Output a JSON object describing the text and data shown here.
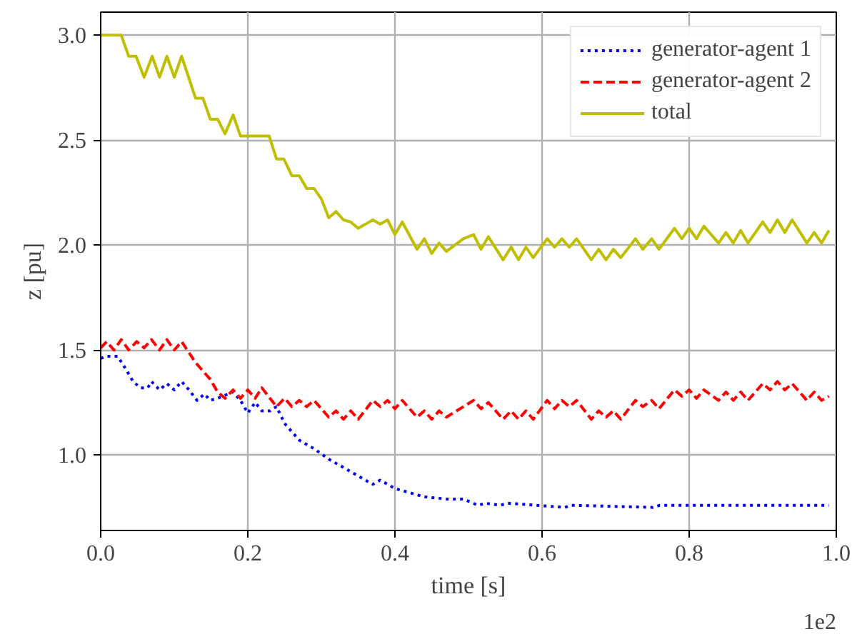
{
  "chart_data": {
    "type": "line",
    "xlabel": "time [s]",
    "ylabel": "z [pu]",
    "annotations": [
      "1e2"
    ],
    "xlim": [
      0.0,
      1.0
    ],
    "xticks": [
      {
        "value": 0,
        "label": "0.0"
      },
      0.2,
      0.4,
      0.6,
      0.8,
      {
        "value": 1,
        "label": "1.0"
      }
    ],
    "ylim": [
      0.64,
      3.11
    ],
    "yticks": [
      {
        "value": 1,
        "label": "1.0"
      },
      1.5,
      {
        "value": 2,
        "label": "2.0"
      },
      2.5,
      {
        "value": 3,
        "label": "3.0"
      }
    ],
    "grid": true,
    "legend": "top right",
    "marker": "none",
    "series": [
      {
        "name": "generator-agent 1",
        "color": "#0000ff",
        "line_style": "dotted",
        "x": [
          0,
          0.008,
          0.023,
          0.034,
          0.044,
          0.054,
          0.064,
          0.069,
          0.08,
          0.09,
          0.1,
          0.11,
          0.12,
          0.131,
          0.141,
          0.149,
          0.159,
          0.18,
          0.19,
          0.2,
          0.21,
          0.219,
          0.23,
          0.239,
          0.25,
          0.27,
          0.29,
          0.31,
          0.33,
          0.35,
          0.37,
          0.38,
          0.4,
          0.42,
          0.44,
          0.47,
          0.493,
          0.513,
          0.523,
          0.543,
          0.553,
          0.631,
          0.64,
          0.751,
          0.76,
          0.99
        ],
        "values": [
          1.46,
          1.47,
          1.47,
          1.41,
          1.35,
          1.32,
          1.32,
          1.35,
          1.31,
          1.34,
          1.31,
          1.35,
          1.31,
          1.26,
          1.29,
          1.26,
          1.27,
          1.3,
          1.26,
          1.2,
          1.25,
          1.21,
          1.21,
          1.23,
          1.15,
          1.07,
          1.03,
          0.98,
          0.94,
          0.9,
          0.86,
          0.88,
          0.84,
          0.82,
          0.8,
          0.79,
          0.79,
          0.76,
          0.77,
          0.76,
          0.77,
          0.75,
          0.76,
          0.75,
          0.76,
          0.76
        ]
      },
      {
        "name": "generator-agent 2",
        "color": "#ff0000",
        "line_style": "dashed",
        "x": [
          0,
          0.008,
          0.018,
          0.028,
          0.038,
          0.049,
          0.059,
          0.069,
          0.08,
          0.09,
          0.1,
          0.11,
          0.129,
          0.149,
          0.159,
          0.169,
          0.18,
          0.19,
          0.2,
          0.21,
          0.219,
          0.239,
          0.25,
          0.26,
          0.27,
          0.28,
          0.29,
          0.31,
          0.32,
          0.33,
          0.34,
          0.35,
          0.37,
          0.38,
          0.39,
          0.4,
          0.41,
          0.43,
          0.44,
          0.45,
          0.46,
          0.47,
          0.493,
          0.507,
          0.517,
          0.527,
          0.547,
          0.558,
          0.568,
          0.578,
          0.588,
          0.607,
          0.617,
          0.627,
          0.637,
          0.647,
          0.667,
          0.677,
          0.687,
          0.697,
          0.707,
          0.727,
          0.737,
          0.749,
          0.759,
          0.78,
          0.79,
          0.8,
          0.81,
          0.82,
          0.84,
          0.85,
          0.86,
          0.87,
          0.88,
          0.9,
          0.91,
          0.92,
          0.93,
          0.94,
          0.96,
          0.97,
          0.98,
          0.99
        ],
        "values": [
          1.51,
          1.54,
          1.5,
          1.55,
          1.5,
          1.54,
          1.51,
          1.55,
          1.5,
          1.55,
          1.5,
          1.54,
          1.44,
          1.36,
          1.3,
          1.27,
          1.31,
          1.27,
          1.31,
          1.27,
          1.32,
          1.23,
          1.27,
          1.23,
          1.26,
          1.23,
          1.26,
          1.18,
          1.21,
          1.17,
          1.21,
          1.17,
          1.26,
          1.23,
          1.26,
          1.22,
          1.26,
          1.18,
          1.21,
          1.17,
          1.21,
          1.18,
          1.23,
          1.26,
          1.22,
          1.25,
          1.17,
          1.21,
          1.17,
          1.21,
          1.17,
          1.26,
          1.22,
          1.26,
          1.23,
          1.26,
          1.17,
          1.21,
          1.18,
          1.21,
          1.17,
          1.26,
          1.23,
          1.26,
          1.22,
          1.31,
          1.28,
          1.31,
          1.27,
          1.31,
          1.26,
          1.3,
          1.26,
          1.3,
          1.26,
          1.34,
          1.31,
          1.35,
          1.31,
          1.34,
          1.26,
          1.3,
          1.26,
          1.28
        ]
      },
      {
        "name": "total",
        "color": "#bfbf00",
        "line_style": "solid",
        "x": [
          0,
          0.028,
          0.038,
          0.048,
          0.059,
          0.07,
          0.08,
          0.09,
          0.1,
          0.11,
          0.129,
          0.139,
          0.149,
          0.159,
          0.169,
          0.18,
          0.19,
          0.229,
          0.239,
          0.249,
          0.26,
          0.27,
          0.28,
          0.29,
          0.3,
          0.31,
          0.32,
          0.33,
          0.34,
          0.35,
          0.36,
          0.37,
          0.38,
          0.39,
          0.4,
          0.41,
          0.43,
          0.44,
          0.45,
          0.46,
          0.47,
          0.493,
          0.507,
          0.517,
          0.527,
          0.547,
          0.558,
          0.568,
          0.578,
          0.588,
          0.607,
          0.617,
          0.627,
          0.637,
          0.647,
          0.667,
          0.677,
          0.687,
          0.697,
          0.707,
          0.727,
          0.737,
          0.749,
          0.759,
          0.78,
          0.79,
          0.8,
          0.81,
          0.82,
          0.84,
          0.85,
          0.86,
          0.87,
          0.88,
          0.9,
          0.91,
          0.92,
          0.93,
          0.94,
          0.96,
          0.97,
          0.98,
          0.99
        ],
        "values": [
          3.0,
          3.0,
          2.9,
          2.9,
          2.8,
          2.9,
          2.8,
          2.9,
          2.8,
          2.9,
          2.7,
          2.7,
          2.6,
          2.6,
          2.53,
          2.62,
          2.52,
          2.52,
          2.41,
          2.41,
          2.33,
          2.33,
          2.27,
          2.27,
          2.22,
          2.13,
          2.16,
          2.12,
          2.11,
          2.08,
          2.1,
          2.12,
          2.1,
          2.12,
          2.05,
          2.11,
          1.98,
          2.03,
          1.96,
          2.01,
          1.97,
          2.03,
          2.05,
          1.98,
          2.04,
          1.93,
          1.99,
          1.93,
          1.99,
          1.94,
          2.03,
          1.99,
          2.03,
          1.99,
          2.03,
          1.93,
          1.98,
          1.93,
          1.98,
          1.94,
          2.03,
          1.98,
          2.03,
          1.98,
          2.08,
          2.03,
          2.08,
          2.03,
          2.09,
          2.01,
          2.06,
          2.01,
          2.07,
          2.01,
          2.11,
          2.06,
          2.12,
          2.06,
          2.12,
          2.01,
          2.06,
          2.01,
          2.07
        ]
      }
    ]
  }
}
